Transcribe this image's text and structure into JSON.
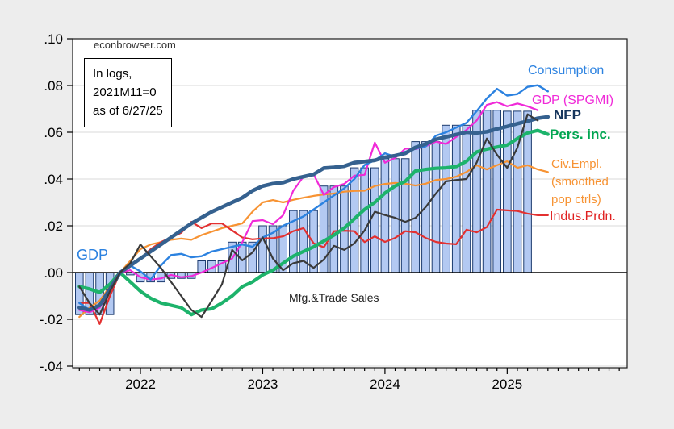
{
  "page": {
    "watermark": "econbrowser.com",
    "note_lines": [
      "In logs,",
      "2021M11=0",
      "as of 6/27/25"
    ]
  },
  "annotations": {
    "gdp_bars_label": "GDP",
    "mfg_label": "Mfg.&Trade Sales",
    "consumption_label": "Consumption",
    "gdp_spgmi_label": "GDP (SPGMI)",
    "nfp_label": "NFP",
    "pers_inc_label": "Pers. inc.",
    "civ_empl_label_line1": "Civ.Empl.",
    "civ_empl_label_line2": "(smoothed",
    "civ_empl_label_line3": "pop ctrls)",
    "indus_prdn_label": "Indus.Prdn."
  },
  "colors": {
    "background": "#ededed",
    "plot_background": "#ffffff",
    "gridline": "#d8d8d8",
    "frame": "#1a1a1a",
    "zero_line": "#000000",
    "bar_fill": "#b3c9f2",
    "bar_border": "#1c3b6e",
    "consumption": "#2c82e0",
    "gdp_spgmi": "#f02ad8",
    "nfp": "#35618f",
    "pers_inc": "#1db36b",
    "civ_empl": "#f79333",
    "indus_prdn": "#e33030",
    "mfg_trade": "#3a3a3a"
  },
  "chart_data": {
    "type": "bar+line",
    "x_start": "2021M07",
    "x_end": "2025M05",
    "frequency": "monthly",
    "normalization": "In logs, 2021M11=0, as of 6/27/25",
    "grid": "horizontal-only",
    "y_axis": {
      "range": [
        -0.04,
        0.1
      ],
      "ticks": [
        {
          "value": 0.1,
          "label": ".10"
        },
        {
          "value": 0.08,
          "label": ".08"
        },
        {
          "value": 0.06,
          "label": ".06"
        },
        {
          "value": 0.04,
          "label": ".04"
        },
        {
          "value": 0.02,
          "label": ".02"
        },
        {
          "value": 0.0,
          "label": ".00"
        },
        {
          "value": -0.02,
          "label": "-.02"
        },
        {
          "value": -0.04,
          "label": "-.04"
        }
      ]
    },
    "x_axis": {
      "year_ticks": [
        {
          "month_index": 6,
          "label": "2022"
        },
        {
          "month_index": 18,
          "label": "2023"
        },
        {
          "month_index": 30,
          "label": "2024"
        },
        {
          "month_index": 42,
          "label": "2025"
        }
      ],
      "minor_tick_months": 54
    },
    "bar_series": {
      "name": "GDP",
      "values": [
        -0.018,
        -0.018,
        -0.018,
        -0.018,
        0,
        -0.001,
        -0.004,
        -0.004,
        -0.004,
        -0.0025,
        -0.0025,
        -0.0025,
        0.005,
        0.005,
        0.005,
        0.013,
        0.013,
        0.013,
        0.02,
        0.02,
        0.02,
        0.0265,
        0.0265,
        0.0265,
        0.037,
        0.037,
        0.037,
        0.0448,
        0.0448,
        0.0448,
        0.0487,
        0.0487,
        0.0487,
        0.056,
        0.056,
        0.056,
        0.063,
        0.063,
        0.063,
        0.0694,
        0.0694,
        0.0694,
        0.069,
        0.069,
        0.069,
        null,
        null
      ]
    },
    "series": [
      {
        "key": "civ_empl",
        "name": "Civ.Empl. (smoothed pop ctrls)",
        "width": 2.2,
        "values": [
          -0.019,
          -0.015,
          -0.012,
          -0.006,
          0,
          0.005,
          0.01,
          0.012,
          0.013,
          0.014,
          0.0145,
          0.014,
          0.016,
          0.0175,
          0.019,
          0.02,
          0.021,
          0.026,
          0.03,
          0.031,
          0.03,
          0.0311,
          0.032,
          0.0328,
          0.0334,
          0.0338,
          0.0346,
          0.0349,
          0.035,
          0.037,
          0.0379,
          0.0383,
          0.038,
          0.0372,
          0.038,
          0.0396,
          0.04,
          0.041,
          0.043,
          0.0459,
          0.0441,
          0.0459,
          0.0476,
          0.0448,
          0.0459,
          0.0441,
          0.043
        ]
      },
      {
        "key": "indus_prdn",
        "name": "Indus.Prdn.",
        "width": 2.2,
        "values": [
          -0.013,
          -0.013,
          -0.022,
          -0.01,
          0,
          0.003,
          0.006,
          0.01,
          0.013,
          0.015,
          0.017,
          0.0217,
          0.019,
          0.021,
          0.021,
          0.018,
          0.015,
          0.0142,
          0.0146,
          0.0147,
          0.0155,
          0.0177,
          0.019,
          0.0125,
          0.0108,
          0.0177,
          0.0179,
          0.0177,
          0.013,
          0.0155,
          0.0131,
          0.0148,
          0.0177,
          0.0172,
          0.0148,
          0.0131,
          0.0124,
          0.0121,
          0.0183,
          0.0172,
          0.0194,
          0.0269,
          0.0266,
          0.0263,
          0.0252,
          0.0245,
          0.0245
        ]
      },
      {
        "key": "gdp_spgmi",
        "name": "GDP (SPGMI)",
        "width": 2.2,
        "values": [
          -0.016,
          -0.017,
          -0.015,
          -0.008,
          0,
          0.001,
          -0.002,
          -0.003,
          -0.0025,
          -0.001,
          -0.002,
          -0.0015,
          0,
          0.002,
          0.004,
          0.006,
          0.013,
          0.022,
          0.0224,
          0.0207,
          0.0245,
          0.035,
          0.041,
          0.042,
          0.0332,
          0.0366,
          0.0379,
          0.0414,
          0.0418,
          0.0556,
          0.047,
          0.049,
          0.053,
          0.0528,
          0.054,
          0.056,
          0.055,
          0.058,
          0.061,
          0.065,
          0.0717,
          0.0729,
          0.0711,
          0.0723,
          0.0711,
          0.0694,
          null
        ]
      },
      {
        "key": "consumption",
        "name": "Consumption",
        "width": 2.4,
        "values": [
          -0.013,
          -0.016,
          -0.014,
          -0.008,
          0,
          0.003,
          0.0005,
          -0.003,
          0.003,
          0.0075,
          0.008,
          0.0065,
          0.007,
          0.009,
          0.01,
          0.011,
          0.012,
          0.011,
          0.015,
          0.017,
          0.02,
          0.022,
          0.024,
          0.027,
          0.03,
          0.033,
          0.036,
          0.04,
          0.046,
          0.048,
          0.051,
          0.0495,
          0.0517,
          0.053,
          0.054,
          0.0585,
          0.06,
          0.062,
          0.064,
          0.069,
          0.0745,
          0.0786,
          0.0757,
          0.0763,
          0.0794,
          0.0801,
          0.0775
        ]
      },
      {
        "key": "pers_inc",
        "name": "Pers. inc.",
        "width": 4.2,
        "values": [
          -0.006,
          -0.007,
          -0.0085,
          -0.005,
          0,
          -0.004,
          -0.008,
          -0.011,
          -0.013,
          -0.014,
          -0.015,
          -0.018,
          -0.016,
          -0.0155,
          -0.013,
          -0.01,
          -0.006,
          -0.004,
          -0.001,
          0.001,
          0.004,
          0.007,
          0.009,
          0.011,
          0.0135,
          0.016,
          0.019,
          0.023,
          0.027,
          0.03,
          0.034,
          0.037,
          0.039,
          0.0435,
          0.0441,
          0.0446,
          0.0448,
          0.0453,
          0.0476,
          0.0516,
          0.0528,
          0.0537,
          0.0545,
          0.0573,
          0.0597,
          0.0608,
          0.0591
        ]
      },
      {
        "key": "nfp",
        "name": "NFP",
        "width": 4.6,
        "values": [
          -0.015,
          -0.016,
          -0.014,
          -0.007,
          0,
          0.003,
          0.006,
          0.009,
          0.012,
          0.015,
          0.018,
          0.021,
          0.0235,
          0.026,
          0.028,
          0.03,
          0.032,
          0.035,
          0.037,
          0.038,
          0.0385,
          0.04,
          0.041,
          0.042,
          0.0447,
          0.045,
          0.0455,
          0.047,
          0.0475,
          0.048,
          0.0493,
          0.05,
          0.051,
          0.0535,
          0.055,
          0.057,
          0.058,
          0.059,
          0.06,
          0.0597,
          0.0602,
          0.0614,
          0.0625,
          0.0637,
          0.0648,
          0.066,
          0.0666
        ]
      },
      {
        "key": "mfg_trade",
        "name": "Mfg.&Trade Sales",
        "width": 2.2,
        "values": [
          -0.006,
          -0.013,
          -0.018,
          -0.008,
          0,
          0.004,
          0.012,
          0.007,
          0.002,
          -0.004,
          -0.01,
          -0.016,
          -0.019,
          -0.012,
          -0.005,
          0.0097,
          0.0052,
          0.0086,
          0.015,
          0.006,
          0.001,
          0.004,
          0.005,
          0.002,
          0.0056,
          0.0114,
          0.0097,
          0.0125,
          0.018,
          0.026,
          0.0246,
          0.0234,
          0.0217,
          0.0234,
          0.028,
          0.0338,
          0.039,
          0.0396,
          0.04,
          0.047,
          0.0573,
          0.0504,
          0.0448,
          0.0534,
          0.0677,
          0.065,
          null
        ]
      }
    ]
  }
}
